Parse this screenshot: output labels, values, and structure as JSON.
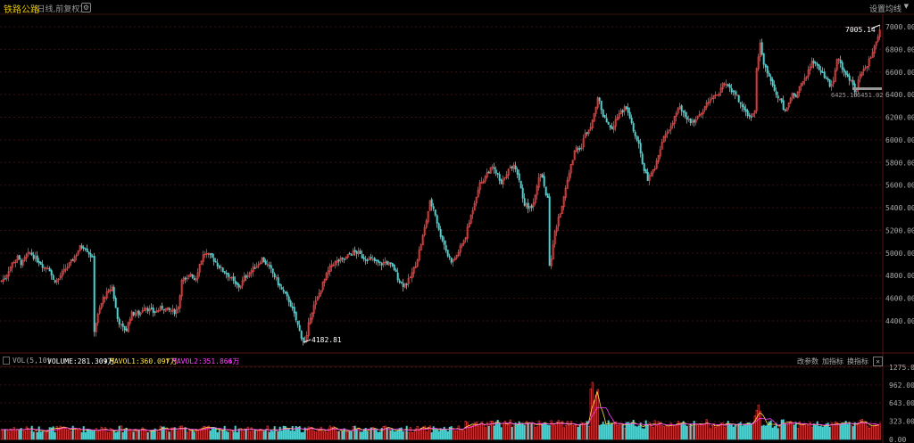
{
  "header": {
    "title": "铁路公路",
    "subtitle": "(日线,前复权)",
    "gear_icon": "gear-icon",
    "ma_settings_label": "设置均线",
    "dropdown_icon": "chevron-down-icon"
  },
  "price_axis": {
    "ticks": [
      "7000.00",
      "6800.00",
      "6600.00",
      "6400.00",
      "6200.00",
      "6000.00",
      "5800.00",
      "5600.00",
      "5400.00",
      "5200.00",
      "5000.00",
      "4800.00",
      "4600.00",
      "4400.00"
    ]
  },
  "price_annotations": {
    "high_label": "7005.14",
    "low_label": "4182.81",
    "last_left": "6425.16",
    "last_right": "6451.02"
  },
  "volume_panel": {
    "indicator": "VOL(5,10)",
    "volume_label": "VOLUME:281.309万",
    "mavol1_label": "MAVOL1:360.097万",
    "mavol2_label": "MAVOL2:351.866万",
    "change_params_label": "改参数",
    "add_indicator_label": "加指标",
    "switch_indicator_label": "换指标",
    "close_icon": "close-icon",
    "ticks": [
      "1275.00",
      "962.00",
      "643.00",
      "323.00",
      "0.00"
    ]
  },
  "colors": {
    "background": "#000000",
    "up": "#ff4040",
    "down": "#40d8d8",
    "title": "#e8c800",
    "axis_text": "#aaaaaa",
    "grid": "#3a1010",
    "vol_label": "#ffffff",
    "mavol1": "#ffe040",
    "mavol2": "#ff40ff"
  },
  "chart_data": {
    "type": "candlestick",
    "price_range": [
      4182.81,
      7005.14
    ],
    "y_ticks": [
      4400,
      4600,
      4800,
      5000,
      5200,
      5400,
      5600,
      5800,
      6000,
      6200,
      6400,
      6600,
      6800,
      7000
    ],
    "close_path": [
      [
        0,
        4750
      ],
      [
        5,
        4780
      ],
      [
        9,
        4850
      ],
      [
        14,
        4920
      ],
      [
        19,
        4960
      ],
      [
        24,
        4900
      ],
      [
        29,
        4980
      ],
      [
        34,
        5000
      ],
      [
        39,
        4950
      ],
      [
        44,
        4920
      ],
      [
        49,
        4870
      ],
      [
        54,
        4880
      ],
      [
        59,
        4760
      ],
      [
        64,
        4760
      ],
      [
        69,
        4820
      ],
      [
        74,
        4870
      ],
      [
        79,
        4920
      ],
      [
        84,
        4980
      ],
      [
        89,
        5050
      ],
      [
        94,
        5060
      ],
      [
        99,
        5000
      ],
      [
        103,
        4950
      ],
      [
        105,
        4320
      ],
      [
        110,
        4480
      ],
      [
        115,
        4600
      ],
      [
        120,
        4650
      ],
      [
        125,
        4700
      ],
      [
        128,
        4560
      ],
      [
        131,
        4420
      ],
      [
        136,
        4340
      ],
      [
        141,
        4320
      ],
      [
        146,
        4460
      ],
      [
        151,
        4470
      ],
      [
        156,
        4460
      ],
      [
        161,
        4530
      ],
      [
        166,
        4500
      ],
      [
        171,
        4480
      ],
      [
        176,
        4490
      ],
      [
        181,
        4520
      ],
      [
        186,
        4500
      ],
      [
        191,
        4490
      ],
      [
        196,
        4480
      ],
      [
        200,
        4550
      ],
      [
        203,
        4780
      ],
      [
        208,
        4750
      ],
      [
        213,
        4820
      ],
      [
        218,
        4760
      ],
      [
        223,
        4900
      ],
      [
        228,
        5000
      ],
      [
        233,
        4980
      ],
      [
        238,
        4950
      ],
      [
        243,
        4900
      ],
      [
        248,
        4850
      ],
      [
        253,
        4820
      ],
      [
        258,
        4780
      ],
      [
        263,
        4720
      ],
      [
        268,
        4700
      ],
      [
        273,
        4780
      ],
      [
        278,
        4820
      ],
      [
        283,
        4860
      ],
      [
        288,
        4900
      ],
      [
        293,
        4950
      ],
      [
        298,
        4900
      ],
      [
        303,
        4850
      ],
      [
        308,
        4780
      ],
      [
        313,
        4700
      ],
      [
        318,
        4640
      ],
      [
        323,
        4580
      ],
      [
        328,
        4480
      ],
      [
        333,
        4360
      ],
      [
        338,
        4240
      ],
      [
        342,
        4200
      ],
      [
        346,
        4420
      ],
      [
        351,
        4530
      ],
      [
        356,
        4620
      ],
      [
        361,
        4730
      ],
      [
        366,
        4820
      ],
      [
        371,
        4900
      ],
      [
        376,
        4920
      ],
      [
        381,
        4940
      ],
      [
        386,
        4950
      ],
      [
        391,
        4990
      ],
      [
        396,
        5010
      ],
      [
        401,
        5000
      ],
      [
        406,
        4960
      ],
      [
        411,
        4950
      ],
      [
        416,
        4940
      ],
      [
        421,
        4920
      ],
      [
        426,
        4900
      ],
      [
        431,
        4920
      ],
      [
        436,
        4900
      ],
      [
        441,
        4860
      ],
      [
        446,
        4760
      ],
      [
        451,
        4720
      ],
      [
        456,
        4740
      ],
      [
        461,
        4820
      ],
      [
        466,
        4920
      ],
      [
        471,
        5080
      ],
      [
        476,
        5250
      ],
      [
        481,
        5450
      ],
      [
        486,
        5380
      ],
      [
        491,
        5200
      ],
      [
        496,
        5100
      ],
      [
        501,
        4980
      ],
      [
        506,
        4920
      ],
      [
        511,
        4980
      ],
      [
        516,
        5060
      ],
      [
        521,
        5150
      ],
      [
        526,
        5300
      ],
      [
        531,
        5450
      ],
      [
        536,
        5600
      ],
      [
        541,
        5650
      ],
      [
        546,
        5720
      ],
      [
        551,
        5750
      ],
      [
        556,
        5700
      ],
      [
        561,
        5600
      ],
      [
        566,
        5700
      ],
      [
        571,
        5750
      ],
      [
        576,
        5780
      ],
      [
        581,
        5650
      ],
      [
        586,
        5450
      ],
      [
        591,
        5400
      ],
      [
        596,
        5420
      ],
      [
        601,
        5600
      ],
      [
        606,
        5720
      ],
      [
        611,
        5500
      ],
      [
        616,
        4900
      ],
      [
        620,
        5150
      ],
      [
        625,
        5300
      ],
      [
        630,
        5450
      ],
      [
        635,
        5650
      ],
      [
        640,
        5800
      ],
      [
        645,
        5950
      ],
      [
        650,
        5920
      ],
      [
        655,
        6050
      ],
      [
        660,
        6100
      ],
      [
        665,
        6250
      ],
      [
        670,
        6380
      ],
      [
        675,
        6200
      ],
      [
        680,
        6150
      ],
      [
        685,
        6100
      ],
      [
        690,
        6200
      ],
      [
        695,
        6250
      ],
      [
        700,
        6280
      ],
      [
        705,
        6200
      ],
      [
        710,
        6050
      ],
      [
        715,
        5950
      ],
      [
        720,
        5750
      ],
      [
        725,
        5650
      ],
      [
        730,
        5700
      ],
      [
        735,
        5800
      ],
      [
        740,
        5950
      ],
      [
        745,
        6050
      ],
      [
        750,
        6100
      ],
      [
        755,
        6200
      ],
      [
        760,
        6280
      ],
      [
        765,
        6250
      ],
      [
        770,
        6180
      ],
      [
        775,
        6150
      ],
      [
        780,
        6200
      ],
      [
        785,
        6250
      ],
      [
        790,
        6300
      ],
      [
        795,
        6350
      ],
      [
        800,
        6380
      ],
      [
        805,
        6420
      ],
      [
        810,
        6500
      ],
      [
        815,
        6480
      ],
      [
        820,
        6420
      ],
      [
        825,
        6380
      ],
      [
        830,
        6300
      ],
      [
        835,
        6250
      ],
      [
        840,
        6200
      ],
      [
        845,
        6250
      ],
      [
        848,
        6650
      ],
      [
        851,
        6850
      ],
      [
        854,
        6700
      ],
      [
        858,
        6620
      ],
      [
        862,
        6550
      ],
      [
        866,
        6450
      ],
      [
        870,
        6400
      ],
      [
        874,
        6350
      ],
      [
        878,
        6250
      ],
      [
        882,
        6300
      ],
      [
        886,
        6400
      ],
      [
        890,
        6380
      ],
      [
        894,
        6450
      ],
      [
        898,
        6500
      ],
      [
        902,
        6550
      ],
      [
        906,
        6620
      ],
      [
        910,
        6700
      ],
      [
        914,
        6680
      ],
      [
        918,
        6620
      ],
      [
        922,
        6580
      ],
      [
        926,
        6520
      ],
      [
        930,
        6480
      ],
      [
        934,
        6550
      ],
      [
        938,
        6750
      ],
      [
        942,
        6650
      ],
      [
        946,
        6600
      ],
      [
        950,
        6550
      ],
      [
        954,
        6500
      ],
      [
        958,
        6420
      ],
      [
        962,
        6550
      ],
      [
        966,
        6600
      ],
      [
        970,
        6650
      ],
      [
        974,
        6720
      ],
      [
        978,
        6800
      ],
      [
        982,
        6880
      ],
      [
        986,
        7000
      ]
    ]
  }
}
